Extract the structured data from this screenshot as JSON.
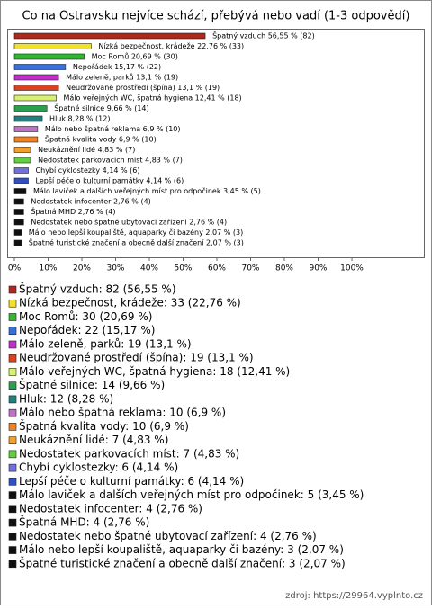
{
  "chart_data": {
    "type": "bar",
    "orientation": "horizontal",
    "title": "Co na Ostravsku nejvíce schází, přebývá nebo vadí (1-3 odpovědí)",
    "values": [
      56.55,
      22.76,
      20.69,
      15.17,
      13.1,
      13.1,
      12.41,
      9.66,
      8.28,
      6.9,
      6.9,
      4.83,
      4.83,
      4.14,
      4.14,
      3.45,
      2.76,
      2.76,
      2.76,
      2.07,
      2.07
    ],
    "value_labels": [
      "Špatný vzduch 56,55 % (82)",
      "Nízká bezpečnost, krádeže 22,76 % (33)",
      "Moc Romů 20,69 % (30)",
      "Nepořádek 15,17 % (22)",
      "Málo zeleně, parků 13,1 % (19)",
      "Neudržované prostředí (špína) 13,1 % (19)",
      "Málo veřejných WC, špatná hygiena 12,41 % (18)",
      "Špatné silnice 9,66 % (14)",
      "Hluk 8,28 % (12)",
      "Málo nebo špatná reklama 6,9 % (10)",
      "Špatná kvalita vody 6,9 % (10)",
      "Neukáznění lidé 4,83 % (7)",
      "Nedostatek parkovacích míst 4,83 % (7)",
      "Chybí cyklostezky 4,14 % (6)",
      "Lepší péče o kulturní památky 4,14 % (6)",
      "Málo laviček a dalších veřejných míst pro odpočinek 3,45 % (5)",
      "Nedostatek infocenter 2,76 % (4)",
      "Špatná MHD 2,76 % (4)",
      "Nedostatek nebo špatné ubytovací zařízení 2,76 % (4)",
      "Málo nebo lepší koupaliště, aquaparky či bazény 2,07 % (3)",
      "Špatné turistické značení a obecně další značení 2,07 % (3)"
    ],
    "legend": [
      "Špatný vzduch: 82 (56,55 %)",
      "Nízká bezpečnost, krádeže: 33 (22,76 %)",
      "Moc Romů: 30 (20,69 %)",
      "Nepořádek: 22 (15,17 %)",
      "Málo zeleně, parků: 19 (13,1 %)",
      "Neudržované prostředí (špína): 19 (13,1 %)",
      "Málo veřejných WC, špatná hygiena: 18 (12,41 %)",
      "Špatné silnice: 14 (9,66 %)",
      "Hluk: 12 (8,28 %)",
      "Málo nebo špatná reklama: 10 (6,9 %)",
      "Špatná kvalita vody: 10 (6,9 %)",
      "Neukáznění lidé: 7 (4,83 %)",
      "Nedostatek parkovacích míst: 7 (4,83 %)",
      "Chybí cyklostezky: 6 (4,14 %)",
      "Lepší péče o kulturní památky: 6 (4,14 %)",
      "Málo laviček a dalších veřejných míst pro odpočinek: 5 (3,45 %)",
      "Nedostatek infocenter: 4 (2,76 %)",
      "Špatná MHD: 4 (2,76 %)",
      "Nedostatek nebo špatné ubytovací zařízení: 4 (2,76 %)",
      "Málo nebo lepší koupaliště, aquaparky či bazény: 3 (2,07 %)",
      "Špatné turistické značení a obecně další značení: 3 (2,07 %)"
    ],
    "colors": [
      "#b0281c",
      "#f2e02a",
      "#2eb82e",
      "#3a6fd8",
      "#c030c8",
      "#e0401c",
      "#d8f070",
      "#28a050",
      "#208080",
      "#c070c8",
      "#f08020",
      "#f0a030",
      "#60d040",
      "#7070e0",
      "#3050c0",
      "#101010",
      "#101010",
      "#101010",
      "#101010",
      "#101010",
      "#101010"
    ],
    "xlim": [
      0,
      100
    ],
    "xticks": [
      {
        "value": 0,
        "label": "0%"
      },
      {
        "value": 10,
        "label": "10%"
      },
      {
        "value": 20,
        "label": "20%"
      },
      {
        "value": 30,
        "label": "30%"
      },
      {
        "value": 40,
        "label": "40%"
      },
      {
        "value": 50,
        "label": "50%"
      },
      {
        "value": 60,
        "label": "60%"
      },
      {
        "value": 70,
        "label": "70%"
      },
      {
        "value": 80,
        "label": "80%"
      },
      {
        "value": 90,
        "label": "90%"
      },
      {
        "value": 100,
        "label": "100%"
      }
    ],
    "source": "zdroj: https://29964.vyplnto.cz"
  }
}
